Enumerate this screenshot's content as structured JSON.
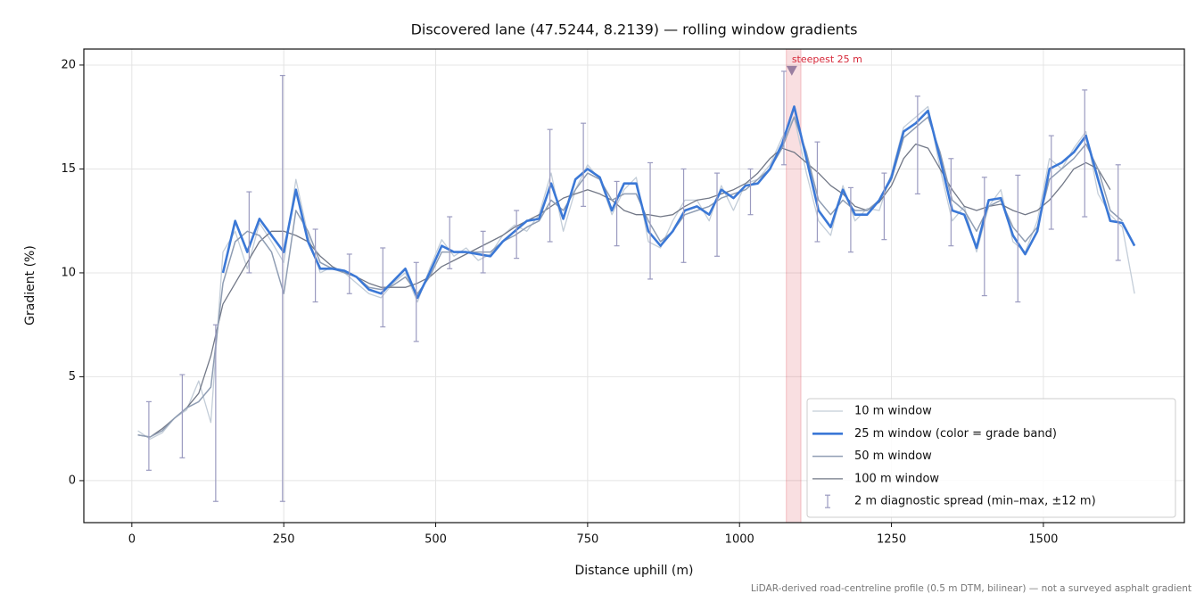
{
  "chart_data": {
    "type": "line",
    "title": "Discovered lane (47.5244, 8.2139) — rolling window gradients",
    "xlabel": "Distance uphill (m)",
    "ylabel": "Gradient (%)",
    "caption": "LiDAR-derived road-centreline profile (0.5 m DTM, bilinear) — not a surveyed asphalt gradient",
    "xlim": [
      -79,
      1732
    ],
    "ylim": [
      -2.02,
      20.77
    ],
    "xticks": [
      0,
      250,
      500,
      750,
      1000,
      1250,
      1500
    ],
    "yticks": [
      0,
      5,
      10,
      15,
      20
    ],
    "grid": true,
    "legend": "lower right",
    "x": [
      10,
      30,
      50,
      70,
      90,
      110,
      130,
      150,
      170,
      190,
      210,
      230,
      250,
      270,
      290,
      310,
      330,
      350,
      370,
      390,
      410,
      430,
      450,
      470,
      490,
      510,
      530,
      550,
      570,
      590,
      610,
      630,
      650,
      670,
      690,
      710,
      730,
      750,
      770,
      790,
      810,
      830,
      850,
      870,
      890,
      910,
      930,
      950,
      970,
      990,
      1010,
      1030,
      1050,
      1070,
      1090,
      1110,
      1130,
      1150,
      1170,
      1190,
      1210,
      1230,
      1250,
      1270,
      1290,
      1310,
      1330,
      1350,
      1370,
      1390,
      1410,
      1430,
      1450,
      1470,
      1490,
      1510,
      1530,
      1550,
      1570,
      1590,
      1610,
      1630,
      1650
    ],
    "series": [
      {
        "name": "10 m window",
        "color": "#c3cdd8",
        "width": 1.3,
        "values": [
          2.4,
          2.0,
          2.3,
          3.0,
          3.4,
          4.8,
          2.8,
          11.0,
          12.0,
          10.2,
          12.4,
          11.5,
          10.5,
          14.5,
          11.8,
          10.0,
          10.3,
          10.0,
          9.5,
          9.0,
          8.8,
          9.5,
          10.0,
          8.6,
          10.2,
          11.6,
          10.8,
          11.2,
          10.6,
          10.9,
          11.8,
          12.3,
          12.0,
          12.8,
          14.8,
          12.0,
          14.0,
          15.2,
          14.5,
          12.8,
          14.0,
          14.6,
          11.5,
          11.2,
          12.5,
          13.5,
          13.5,
          12.5,
          14.2,
          13.0,
          14.3,
          14.5,
          15.2,
          16.5,
          17.5,
          14.8,
          12.5,
          11.8,
          14.2,
          12.5,
          13.1,
          13.0,
          14.8,
          17.0,
          17.5,
          18.0,
          15.0,
          12.5,
          13.2,
          11.0,
          13.2,
          14.0,
          11.5,
          11.0,
          12.5,
          15.5,
          15.0,
          16.0,
          16.8,
          13.8,
          12.8,
          12.2,
          9.0
        ]
      },
      {
        "name": "25 m window (color = grade band)",
        "color": "#3b78d6",
        "width": 2.6,
        "values": [
          null,
          null,
          null,
          null,
          null,
          null,
          null,
          10.0,
          12.5,
          11.0,
          12.6,
          11.8,
          11.0,
          14.0,
          11.5,
          10.2,
          10.2,
          10.1,
          9.8,
          9.2,
          9.0,
          9.6,
          10.2,
          8.8,
          10.0,
          11.3,
          11.0,
          11.0,
          10.9,
          10.8,
          11.5,
          12.0,
          12.5,
          12.6,
          14.3,
          12.6,
          14.5,
          15.0,
          14.6,
          13.0,
          14.3,
          14.3,
          12.0,
          11.3,
          12.0,
          13.0,
          13.2,
          12.8,
          14.0,
          13.6,
          14.2,
          14.3,
          15.0,
          16.2,
          18.0,
          15.5,
          13.0,
          12.2,
          14.0,
          12.8,
          12.8,
          13.5,
          14.6,
          16.8,
          17.2,
          17.8,
          15.5,
          13.0,
          12.8,
          11.2,
          13.5,
          13.6,
          11.8,
          10.9,
          12.0,
          15.0,
          15.3,
          15.8,
          16.6,
          14.5,
          12.5,
          12.4,
          11.3
        ]
      },
      {
        "name": "50 m window",
        "color": "#8f9db3",
        "width": 1.5,
        "values": [
          2.2,
          2.1,
          2.4,
          3.0,
          3.5,
          3.8,
          4.5,
          9.5,
          11.5,
          12.0,
          11.8,
          11.0,
          9.0,
          13.0,
          12.0,
          10.5,
          10.2,
          10.0,
          9.8,
          9.3,
          9.2,
          9.4,
          9.8,
          9.0,
          9.8,
          11.0,
          11.0,
          11.0,
          11.0,
          11.0,
          11.5,
          11.8,
          12.2,
          12.5,
          13.5,
          13.0,
          14.0,
          14.8,
          14.5,
          13.5,
          13.8,
          13.8,
          12.5,
          11.5,
          12.0,
          12.8,
          13.0,
          13.2,
          13.6,
          13.8,
          14.0,
          14.5,
          15.0,
          16.0,
          17.5,
          15.8,
          13.5,
          12.8,
          13.5,
          13.0,
          13.0,
          13.5,
          14.5,
          16.5,
          17.0,
          17.5,
          15.8,
          13.5,
          13.0,
          12.0,
          13.2,
          13.5,
          12.2,
          11.5,
          12.2,
          14.5,
          15.0,
          15.5,
          16.2,
          15.0,
          13.0,
          12.5,
          null
        ]
      },
      {
        "name": "100 m window",
        "color": "#727887",
        "width": 1.3,
        "values": [
          2.2,
          2.1,
          2.5,
          3.0,
          3.5,
          4.2,
          6.0,
          8.5,
          9.5,
          10.5,
          11.5,
          12.0,
          12.0,
          11.8,
          11.5,
          10.8,
          10.3,
          10.0,
          9.8,
          9.5,
          9.3,
          9.3,
          9.3,
          9.5,
          9.8,
          10.3,
          10.6,
          10.9,
          11.2,
          11.5,
          11.8,
          12.2,
          12.5,
          12.8,
          13.2,
          13.6,
          13.8,
          14.0,
          13.8,
          13.5,
          13.0,
          12.8,
          12.8,
          12.7,
          12.8,
          13.2,
          13.5,
          13.6,
          13.8,
          14.0,
          14.3,
          14.8,
          15.5,
          16.0,
          15.8,
          15.3,
          14.8,
          14.2,
          13.8,
          13.2,
          13.0,
          13.4,
          14.2,
          15.5,
          16.2,
          16.0,
          15.0,
          14.0,
          13.2,
          13.0,
          13.2,
          13.3,
          13.0,
          12.8,
          13.0,
          13.5,
          14.2,
          15.0,
          15.3,
          15.0,
          14.0,
          null,
          null
        ]
      }
    ],
    "error_bars": {
      "name": "2 m diagnostic spread (min–max, ±12 m)",
      "color": "#9b9bc0",
      "x": [
        28,
        83,
        138,
        193,
        248,
        302,
        358,
        413,
        468,
        523,
        578,
        633,
        688,
        743,
        798,
        853,
        908,
        963,
        1018,
        1073,
        1128,
        1183,
        1238,
        1293,
        1348,
        1403,
        1458,
        1513,
        1568,
        1623
      ],
      "low": [
        0.5,
        1.1,
        -1.0,
        10.0,
        -1.0,
        8.6,
        9.0,
        7.4,
        6.7,
        10.2,
        10.0,
        10.7,
        11.5,
        13.2,
        11.3,
        9.7,
        10.5,
        10.8,
        12.8,
        15.2,
        11.5,
        11.0,
        11.6,
        13.8,
        11.3,
        8.9,
        8.6,
        12.1,
        12.7,
        10.6
      ],
      "high": [
        3.8,
        5.1,
        7.5,
        13.9,
        19.5,
        12.1,
        10.9,
        11.2,
        10.5,
        12.7,
        12.0,
        13.0,
        16.9,
        17.2,
        14.4,
        15.3,
        15.0,
        14.8,
        15.0,
        19.7,
        16.3,
        14.1,
        14.8,
        18.5,
        15.5,
        14.6,
        14.7,
        16.6,
        18.8,
        15.2
      ]
    },
    "highlight": {
      "label": "steepest 25 m",
      "span": [
        1077,
        1101
      ],
      "marker": [
        1086,
        19.7
      ],
      "color": "#d62839"
    }
  }
}
